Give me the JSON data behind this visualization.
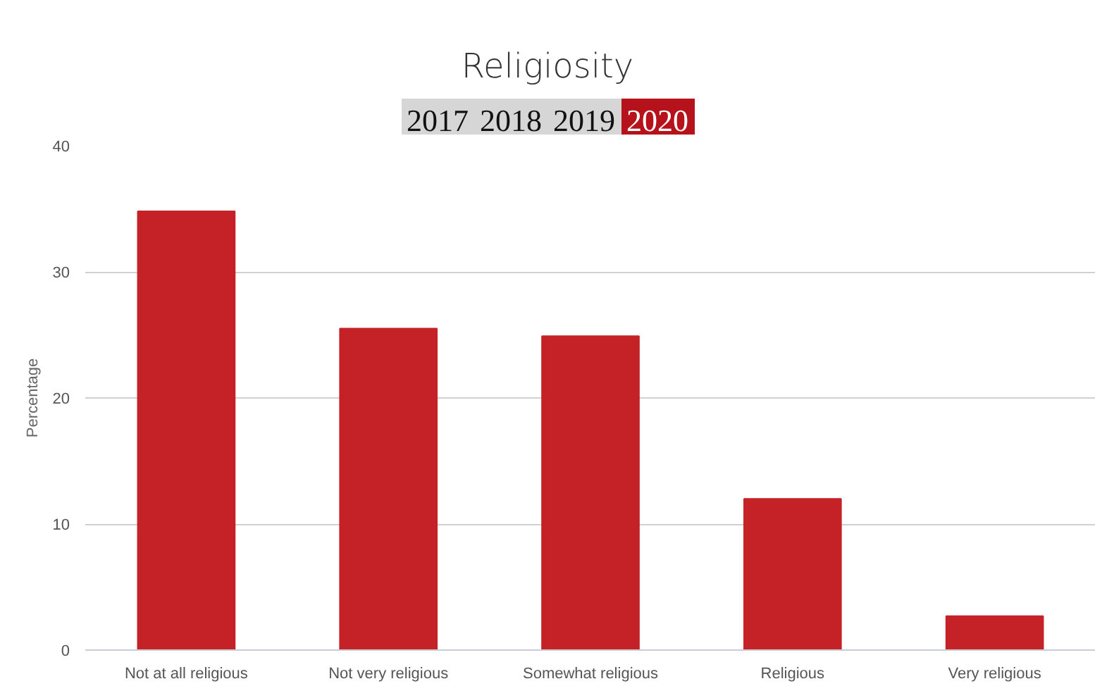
{
  "chart_data": {
    "type": "bar",
    "title": "Religiosity",
    "annotations": [
      "2017",
      "2018",
      "2019",
      "2020"
    ],
    "ylabel": "Percentage",
    "categories": [
      "Not at all religious",
      "Not very religious",
      "Somewhat religious",
      "Religious",
      "Very religious"
    ],
    "values": [
      34.8,
      25.5,
      24.9,
      12.0,
      2.7
    ],
    "color": "#c42226",
    "ylim": [
      0,
      40
    ],
    "yticks": [
      0,
      10,
      20,
      30,
      40
    ],
    "grid": "y"
  }
}
